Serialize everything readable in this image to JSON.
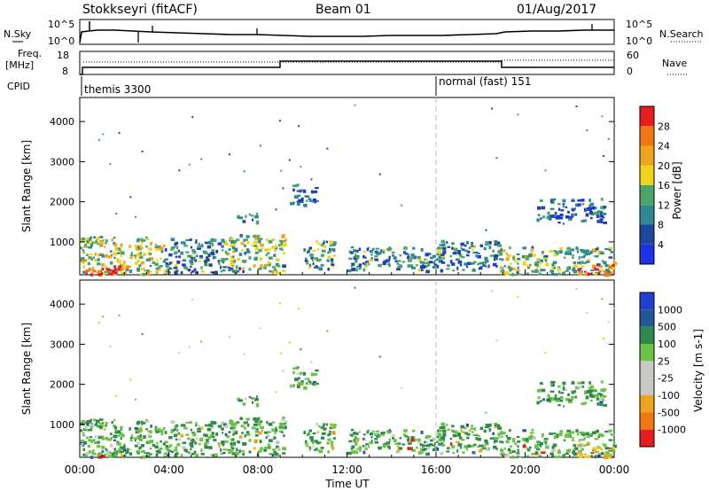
{
  "header": {
    "station": "Stokkseyri (fitACF)",
    "beam": "Beam 01",
    "date": "01/Aug/2017"
  },
  "top_panel": {
    "left_label": "N.Sky",
    "right_label": "N.Search",
    "y_ticks": [
      "10^5",
      "10^0"
    ]
  },
  "freq_panel": {
    "left_label_1": "Freq.",
    "left_label_2": "[MHz]",
    "left_ticks": [
      "18",
      "8"
    ],
    "right_label": "Nave",
    "right_ticks": [
      "60",
      "0"
    ]
  },
  "cpid_panel": {
    "label": "CPID",
    "modes": [
      {
        "name": "themis 3300",
        "start": 0
      },
      {
        "name": "normal (fast) 151",
        "start": 16
      }
    ]
  },
  "power_panel": {
    "ylabel": "Slant Range [km]",
    "y_ticks": [
      "1000",
      "2000",
      "3000",
      "4000"
    ],
    "colorbar_title": "Power [dB]",
    "colorbar_ticks": [
      "4",
      "8",
      "12",
      "16",
      "20",
      "24",
      "28"
    ],
    "colorbar_colors": [
      "#1e32e6",
      "#1e46a0",
      "#2e8a8e",
      "#4aa56a",
      "#f0d218",
      "#f0a41e",
      "#f07814",
      "#e81e1e"
    ]
  },
  "velocity_panel": {
    "ylabel": "Slant Range [km]",
    "y_ticks": [
      "1000",
      "2000",
      "3000",
      "4000"
    ],
    "colorbar_title": "Velocity [m s-1]",
    "colorbar_ticks": [
      "1000",
      "500",
      "100",
      "25",
      "-25",
      "-100",
      "-500",
      "-1000"
    ],
    "colorbar_colors": [
      "#2040d0",
      "#205a96",
      "#2e8a4a",
      "#6ac444",
      "#c8c8c4",
      "#c8c8c4",
      "#f0a41e",
      "#f07814",
      "#e81e1e"
    ]
  },
  "x_axis": {
    "label": "Time UT",
    "ticks": [
      "00:00",
      "04:00",
      "08:00",
      "12:00",
      "16:00",
      "20:00",
      "00:00"
    ]
  },
  "chart_data": {
    "type": "heatmap",
    "x_range_hours": [
      0,
      24
    ],
    "y_range_km": [
      180,
      4600
    ],
    "echo_regions": [
      {
        "t0": 0.0,
        "t1": 3.8,
        "r0": 200,
        "r1": 1150,
        "power_db": 16,
        "velocity": 25
      },
      {
        "t0": 0.0,
        "t1": 2.2,
        "r0": 200,
        "r1": 420,
        "power_db": 28,
        "velocity": 25
      },
      {
        "t0": 3.8,
        "t1": 6.5,
        "r0": 250,
        "r1": 1100,
        "power_db": 10,
        "velocity": 25
      },
      {
        "t0": 6.5,
        "t1": 9.2,
        "r0": 250,
        "r1": 1200,
        "power_db": 14,
        "velocity": 25
      },
      {
        "t0": 7.0,
        "t1": 8.0,
        "r0": 1500,
        "r1": 1750,
        "power_db": 10,
        "velocity": 25
      },
      {
        "t0": 9.4,
        "t1": 10.6,
        "r0": 1950,
        "r1": 2450,
        "power_db": 8,
        "velocity": 25
      },
      {
        "t0": 10.0,
        "t1": 11.4,
        "r0": 350,
        "r1": 1050,
        "power_db": 12,
        "velocity": 25
      },
      {
        "t0": 12.0,
        "t1": 16.0,
        "r0": 300,
        "r1": 900,
        "power_db": 10,
        "velocity": 25
      },
      {
        "t0": 16.0,
        "t1": 18.8,
        "r0": 300,
        "r1": 1050,
        "power_db": 10,
        "velocity": 25
      },
      {
        "t0": 18.8,
        "t1": 24.0,
        "r0": 200,
        "r1": 900,
        "power_db": 14,
        "velocity": 25
      },
      {
        "t0": 22.3,
        "t1": 24.0,
        "r0": 200,
        "r1": 450,
        "power_db": 28,
        "velocity": -100
      },
      {
        "t0": 20.5,
        "t1": 23.5,
        "r0": 1500,
        "r1": 2100,
        "power_db": 8,
        "velocity": 25
      }
    ]
  }
}
